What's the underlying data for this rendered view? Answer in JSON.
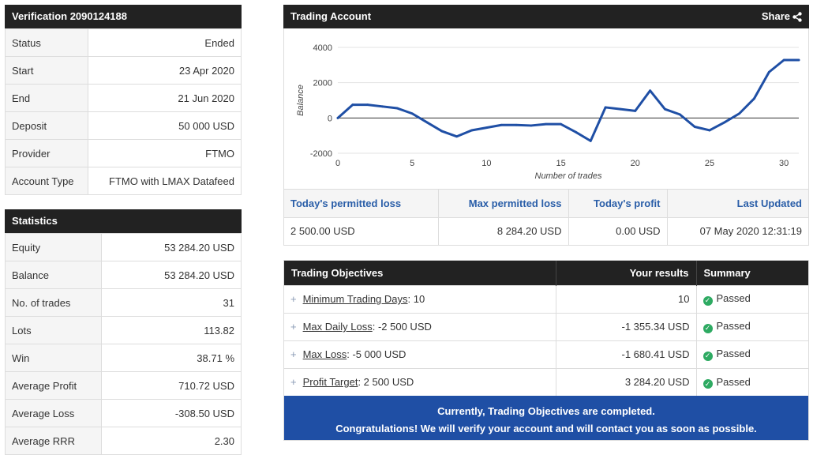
{
  "verification": {
    "title": "Verification 2090124188",
    "rows": [
      {
        "label": "Status",
        "value": "Ended"
      },
      {
        "label": "Start",
        "value": "23 Apr 2020"
      },
      {
        "label": "End",
        "value": "21 Jun 2020"
      },
      {
        "label": "Deposit",
        "value": "50 000 USD"
      },
      {
        "label": "Provider",
        "value": "FTMO"
      },
      {
        "label": "Account Type",
        "value": "FTMO with LMAX Datafeed"
      }
    ]
  },
  "statistics": {
    "title": "Statistics",
    "rows": [
      {
        "label": "Equity",
        "value": "53 284.20 USD"
      },
      {
        "label": "Balance",
        "value": "53 284.20 USD"
      },
      {
        "label": "No. of trades",
        "value": "31"
      },
      {
        "label": "Lots",
        "value": "113.82"
      },
      {
        "label": "Win",
        "value": "38.71 %"
      },
      {
        "label": "Average Profit",
        "value": "710.72 USD"
      },
      {
        "label": "Average Loss",
        "value": "-308.50 USD"
      },
      {
        "label": "Average RRR",
        "value": "2.30"
      }
    ]
  },
  "trading_account": {
    "title": "Trading Account",
    "share_label": "Share",
    "share_icon": "share-icon",
    "limits": {
      "headers": [
        "Today's permitted loss",
        "Max permitted loss",
        "Today's profit",
        "Last Updated"
      ],
      "values": [
        "2 500.00 USD",
        "8 284.20 USD",
        "0.00 USD",
        "07 May 2020 12:31:19"
      ]
    }
  },
  "chart_data": {
    "type": "line",
    "xlabel": "Number of trades",
    "ylabel": "Balance",
    "xlim": [
      0,
      31
    ],
    "ylim": [
      -2000,
      4000
    ],
    "x_ticks": [
      0,
      5,
      10,
      15,
      20,
      25,
      30
    ],
    "y_ticks": [
      -2000,
      0,
      2000,
      4000
    ],
    "grid": true,
    "color": "#1f4fa5",
    "x": [
      0,
      1,
      2,
      3,
      4,
      5,
      6,
      7,
      8,
      9,
      10,
      11,
      12,
      13,
      14,
      15,
      16,
      17,
      18,
      19,
      20,
      21,
      22,
      23,
      24,
      25,
      26,
      27,
      28,
      29,
      30,
      31
    ],
    "y": [
      0,
      750,
      750,
      650,
      550,
      250,
      -250,
      -750,
      -1050,
      -700,
      -550,
      -400,
      -400,
      -430,
      -350,
      -350,
      -800,
      -1300,
      600,
      500,
      400,
      1550,
      500,
      200,
      -500,
      -700,
      -250,
      250,
      1100,
      2600,
      3284.2,
      3284.2
    ]
  },
  "objectives": {
    "headers": {
      "objective": "Trading Objectives",
      "results": "Your results",
      "summary": "Summary"
    },
    "rows": [
      {
        "name": "Minimum Trading Days",
        "target": ": 10",
        "result": "10",
        "status": "Passed"
      },
      {
        "name": "Max Daily Loss",
        "target": ": -2 500 USD",
        "result": "-1 355.34 USD",
        "status": "Passed"
      },
      {
        "name": "Max Loss",
        "target": ": -5 000 USD",
        "result": "-1 680.41 USD",
        "status": "Passed"
      },
      {
        "name": "Profit Target",
        "target": ": 2 500 USD",
        "result": "3 284.20 USD",
        "status": "Passed"
      }
    ],
    "banner_line1": "Currently, Trading Objectives are completed.",
    "banner_line2": "Congratulations! We will verify your account and will contact you as soon as possible.",
    "status_color": "#2eaa62",
    "banner_color": "#1f4fa5"
  }
}
